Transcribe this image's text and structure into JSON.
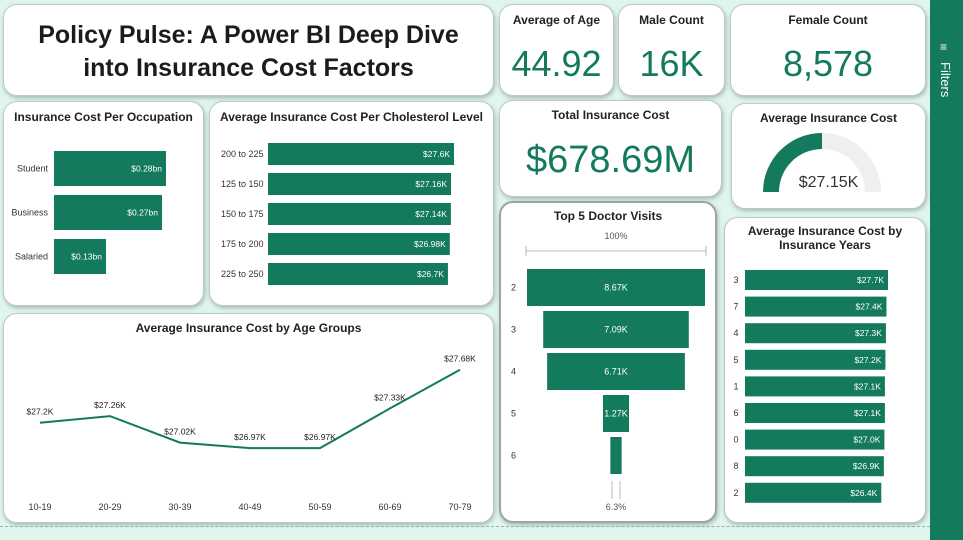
{
  "header": {
    "title_line1": "Policy Pulse: A Power BI Deep Dive",
    "title_line2": "into Insurance Cost Factors"
  },
  "kpis": {
    "avg_age": {
      "label": "Average of Age",
      "value": "44.92"
    },
    "male": {
      "label": "Male Count",
      "value": "16K"
    },
    "female": {
      "label": "Female Count",
      "value": "8,578"
    },
    "total_cost": {
      "label": "Total Insurance Cost",
      "value": "$678.69M"
    }
  },
  "gauge": {
    "label": "Average Insurance Cost",
    "value": "$27.15K",
    "fraction": 0.5
  },
  "filters": {
    "label": "Filters"
  },
  "colors": {
    "accent": "#137a5e",
    "track": "#efefef"
  },
  "chart_data": [
    {
      "id": "occupation",
      "type": "bar",
      "orientation": "horizontal",
      "title": "Insurance Cost Per Occupation",
      "categories": [
        "Student",
        "Business",
        "Salaried"
      ],
      "values": [
        0.28,
        0.27,
        0.13
      ],
      "labels": [
        "$0.28bn",
        "$0.27bn",
        "$0.13bn"
      ],
      "xlim": [
        0,
        0.28
      ]
    },
    {
      "id": "cholesterol",
      "type": "bar",
      "orientation": "horizontal",
      "title": "Average Insurance Cost Per Cholesterol Level",
      "categories": [
        "200 to 225",
        "125 to 150",
        "150 to 175",
        "175 to 200",
        "225 to 250"
      ],
      "values": [
        27.6,
        27.16,
        27.14,
        26.98,
        26.7
      ],
      "labels": [
        "$27.6K",
        "$27.16K",
        "$27.14K",
        "$26.98K",
        "$26.7K"
      ],
      "xlim": [
        0,
        27.6
      ]
    },
    {
      "id": "age_groups",
      "type": "line",
      "title": "Average Insurance Cost by Age Groups",
      "categories": [
        "10-19",
        "20-29",
        "30-39",
        "40-49",
        "50-59",
        "60-69",
        "70-79"
      ],
      "values": [
        27.2,
        27.26,
        27.02,
        26.97,
        26.97,
        27.33,
        27.68
      ],
      "labels": [
        "$27.2K",
        "$27.26K",
        "$27.02K",
        "$26.97K",
        "$26.97K",
        "$27.33K",
        "$27.68K"
      ],
      "ylim": [
        26.6,
        27.75
      ]
    },
    {
      "id": "doctor_visits",
      "type": "funnel",
      "title": "Top 5 Doctor Visits",
      "categories": [
        "2",
        "3",
        "4",
        "5",
        "6"
      ],
      "values": [
        8.67,
        7.09,
        6.71,
        1.27,
        0.55
      ],
      "labels": [
        "8.67K",
        "7.09K",
        "6.71K",
        "1.27K",
        ""
      ],
      "top_percent": "100%",
      "bottom_percent": "6.3%"
    },
    {
      "id": "insurance_years",
      "type": "bar",
      "orientation": "horizontal",
      "title_line1": "Average Insurance Cost by",
      "title_line2": "Insurance Years",
      "categories": [
        "3",
        "7",
        "4",
        "5",
        "1",
        "6",
        "0",
        "8",
        "2"
      ],
      "values": [
        27.7,
        27.4,
        27.3,
        27.2,
        27.1,
        27.1,
        27.0,
        26.9,
        26.4
      ],
      "labels": [
        "$27.7K",
        "$27.4K",
        "$27.3K",
        "$27.2K",
        "$27.1K",
        "$27.1K",
        "$27.0K",
        "$26.9K",
        "$26.4K"
      ],
      "xlim": [
        0,
        27.7
      ]
    }
  ]
}
